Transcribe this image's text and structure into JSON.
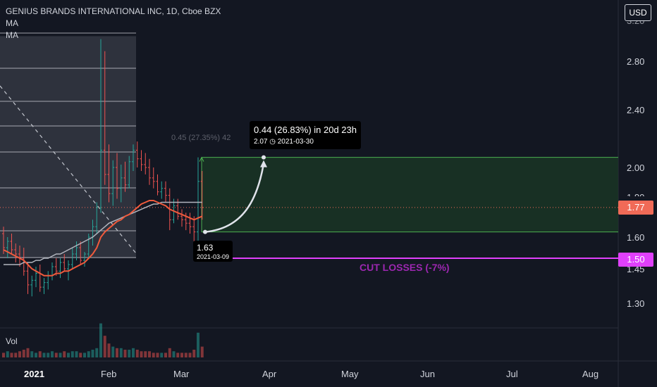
{
  "header": {
    "title": "GENIUS BRANDS INTERNATIONAL INC, 1D, Cboe BZX",
    "indicators": [
      "MA",
      "MA"
    ]
  },
  "currency_button": "USD",
  "y_axis": {
    "ticks": [
      "2.80",
      "2.40",
      "2.00",
      "1.60",
      "1.45",
      "1.30"
    ],
    "partial_top": "3.20",
    "partial_hidden": "1.80"
  },
  "x_axis": {
    "ticks": [
      "2021",
      "Feb",
      "Mar",
      "Apr",
      "May",
      "Jun",
      "Jul",
      "Aug"
    ]
  },
  "volume_label": "Vol",
  "price_tags": {
    "last": "1.77",
    "stop": "1.50"
  },
  "measure": {
    "line1": "0.44 (26.83%) in 20d 23h",
    "line2": "2.07 ◷ 2021-03-30",
    "faded": "0.45 (27.35%) 42"
  },
  "entry": {
    "price": "1.63",
    "date": "2021-03-09"
  },
  "stop_label": "CUT LOSSES (-7%)",
  "colors": {
    "background": "#131722",
    "up": "#26a69a",
    "down": "#ef5350",
    "stop": "#e040fb",
    "target_zone": "#1b3a26",
    "last_price": "#f06a57"
  },
  "chart_data": {
    "type": "candlestick",
    "symbol": "GENIUS BRANDS INTERNATIONAL INC",
    "interval": "1D",
    "exchange": "Cboe BZX",
    "currency": "USD",
    "y_ticks": [
      2.8,
      2.4,
      2.0,
      1.6,
      1.45,
      1.3
    ],
    "last_price": 1.77,
    "stop_loss": 1.5,
    "entry_price": 1.63,
    "entry_date": "2021-03-09",
    "target_price": 2.07,
    "target_date": "2021-03-30",
    "gain": 0.44,
    "gain_pct": 26.83,
    "candles": [
      [
        1.62,
        1.66,
        1.52,
        1.55
      ],
      [
        1.55,
        1.6,
        1.5,
        1.58
      ],
      [
        1.58,
        1.62,
        1.52,
        1.54
      ],
      [
        1.54,
        1.57,
        1.48,
        1.52
      ],
      [
        1.52,
        1.56,
        1.46,
        1.5
      ],
      [
        1.5,
        1.55,
        1.42,
        1.44
      ],
      [
        1.44,
        1.48,
        1.34,
        1.38
      ],
      [
        1.38,
        1.42,
        1.33,
        1.4
      ],
      [
        1.4,
        1.46,
        1.37,
        1.43
      ],
      [
        1.43,
        1.47,
        1.35,
        1.37
      ],
      [
        1.37,
        1.41,
        1.34,
        1.39
      ],
      [
        1.39,
        1.44,
        1.36,
        1.42
      ],
      [
        1.42,
        1.48,
        1.4,
        1.46
      ],
      [
        1.46,
        1.5,
        1.42,
        1.44
      ],
      [
        1.44,
        1.5,
        1.41,
        1.48
      ],
      [
        1.48,
        1.52,
        1.44,
        1.45
      ],
      [
        1.45,
        1.49,
        1.4,
        1.47
      ],
      [
        1.47,
        1.55,
        1.45,
        1.52
      ],
      [
        1.52,
        1.58,
        1.49,
        1.55
      ],
      [
        1.55,
        1.58,
        1.47,
        1.49
      ],
      [
        1.49,
        1.53,
        1.46,
        1.52
      ],
      [
        1.52,
        1.62,
        1.5,
        1.6
      ],
      [
        1.6,
        1.7,
        1.56,
        1.66
      ],
      [
        1.66,
        1.8,
        1.62,
        1.77
      ],
      [
        1.77,
        3.02,
        1.74,
        2.12
      ],
      [
        2.12,
        2.9,
        1.9,
        1.96
      ],
      [
        1.96,
        2.16,
        1.8,
        1.85
      ],
      [
        1.85,
        2.05,
        1.78,
        2.0
      ],
      [
        2.0,
        2.1,
        1.82,
        1.88
      ],
      [
        1.88,
        2.02,
        1.8,
        1.94
      ],
      [
        1.94,
        2.04,
        1.86,
        1.9
      ],
      [
        1.9,
        2.08,
        1.88,
        2.04
      ],
      [
        2.04,
        2.16,
        1.98,
        2.12
      ],
      [
        2.12,
        2.18,
        2.0,
        2.06
      ],
      [
        2.06,
        2.12,
        1.98,
        2.02
      ],
      [
        2.02,
        2.1,
        1.96,
        2.0
      ],
      [
        2.0,
        2.06,
        1.9,
        1.94
      ],
      [
        1.94,
        2.0,
        1.88,
        1.92
      ],
      [
        1.92,
        1.96,
        1.84,
        1.86
      ],
      [
        1.86,
        1.92,
        1.82,
        1.88
      ],
      [
        1.88,
        1.92,
        1.8,
        1.84
      ],
      [
        1.84,
        1.88,
        1.64,
        1.7
      ],
      [
        1.7,
        1.82,
        1.68,
        1.78
      ],
      [
        1.78,
        1.82,
        1.7,
        1.72
      ],
      [
        1.72,
        1.76,
        1.66,
        1.7
      ],
      [
        1.7,
        1.74,
        1.64,
        1.68
      ],
      [
        1.68,
        1.74,
        1.62,
        1.66
      ],
      [
        1.66,
        1.72,
        1.58,
        1.63
      ],
      [
        1.63,
        2.07,
        1.58,
        1.92
      ],
      [
        1.92,
        1.98,
        1.7,
        1.77
      ]
    ],
    "volume": [
      3,
      4,
      3,
      3,
      4,
      5,
      6,
      4,
      3,
      4,
      3,
      3,
      4,
      3,
      3,
      4,
      3,
      4,
      4,
      3,
      3,
      4,
      5,
      6,
      22,
      14,
      9,
      7,
      6,
      6,
      5,
      5,
      6,
      5,
      4,
      4,
      4,
      3,
      3,
      3,
      3,
      6,
      4,
      3,
      3,
      3,
      3,
      5,
      16,
      7
    ],
    "ma_fast": [
      1.54,
      1.53,
      1.52,
      1.51,
      1.5,
      1.49,
      1.47,
      1.45,
      1.44,
      1.43,
      1.42,
      1.42,
      1.42,
      1.43,
      1.43,
      1.44,
      1.44,
      1.45,
      1.46,
      1.47,
      1.48,
      1.5,
      1.52,
      1.55,
      1.6,
      1.63,
      1.65,
      1.67,
      1.69,
      1.7,
      1.72,
      1.73,
      1.75,
      1.77,
      1.79,
      1.8,
      1.81,
      1.81,
      1.8,
      1.79,
      1.78,
      1.76,
      1.75,
      1.74,
      1.73,
      1.72,
      1.71,
      1.7,
      1.71,
      1.72
    ],
    "ma_slow": [
      1.47,
      1.47,
      1.47,
      1.47,
      1.47,
      1.48,
      1.48,
      1.48,
      1.49,
      1.49,
      1.5,
      1.5,
      1.51,
      1.52,
      1.52,
      1.53,
      1.54,
      1.55,
      1.56,
      1.57,
      1.58,
      1.59,
      1.6,
      1.62,
      1.64,
      1.66,
      1.68,
      1.69,
      1.7,
      1.71,
      1.72,
      1.73,
      1.74,
      1.75,
      1.76,
      1.77,
      1.78,
      1.79,
      1.79,
      1.8,
      1.8,
      1.8,
      1.8,
      1.8,
      1.8,
      1.8,
      1.8,
      1.8,
      1.8,
      1.8
    ],
    "fib_levels": [
      3.05,
      2.62,
      2.36,
      2.15,
      1.95,
      1.6
    ]
  }
}
